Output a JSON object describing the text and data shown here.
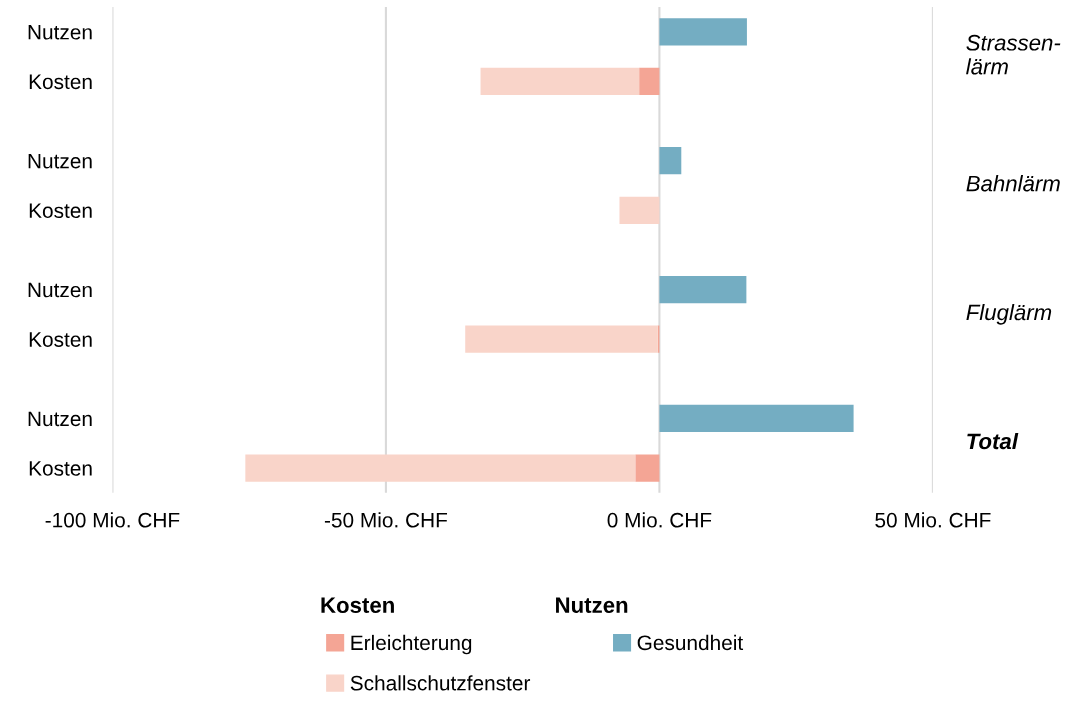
{
  "chart_data": {
    "type": "bar",
    "orientation": "horizontal",
    "stacked": true,
    "categories": [
      "Nutzen",
      "Kosten",
      "Nutzen",
      "Kosten",
      "Nutzen",
      "Kosten",
      "Nutzen",
      "Kosten"
    ],
    "series": [
      {
        "name": "Erleichterung",
        "color": "#f4a595",
        "values": [
          null,
          -3.7,
          null,
          null,
          null,
          -0.3,
          null,
          -4.4
        ]
      },
      {
        "name": "Schallschutzfenster",
        "color": "#f9d4c9",
        "values": [
          null,
          -29.0,
          null,
          -7.3,
          null,
          -35.2,
          null,
          -71.3
        ]
      },
      {
        "name": "Gesundheit",
        "color": "#74adc2",
        "values": [
          16.0,
          null,
          4.0,
          null,
          15.9,
          null,
          35.5,
          null
        ]
      }
    ],
    "xlim": [
      -100,
      50
    ],
    "xticks": [
      {
        "value": -100,
        "label": "-100 Mio. CHF"
      },
      {
        "value": -50,
        "label": "-50 Mio. CHF"
      },
      {
        "value": 0,
        "label": "0 Mio. CHF"
      },
      {
        "value": 50,
        "label": "50 Mio. CHF"
      }
    ],
    "grid": "x",
    "legend": "bottom",
    "annotations": [
      "Strassen-\nlärm",
      "Bahnlärm",
      "Fluglärm",
      "Total",
      "Kosten",
      "Nutzen"
    ]
  }
}
